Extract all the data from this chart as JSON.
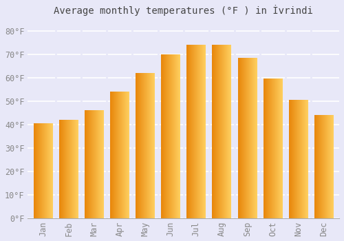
{
  "title": "Average monthly temperatures (°F ) in İvrindi",
  "months": [
    "Jan",
    "Feb",
    "Mar",
    "Apr",
    "May",
    "Jun",
    "Jul",
    "Aug",
    "Sep",
    "Oct",
    "Nov",
    "Dec"
  ],
  "values": [
    40.5,
    42.0,
    46.0,
    54.0,
    62.0,
    70.0,
    74.0,
    74.0,
    68.5,
    59.5,
    50.5,
    44.0
  ],
  "bar_color_left": "#E8860A",
  "bar_color_right": "#FFD060",
  "ylim": [
    0,
    85
  ],
  "yticks": [
    0,
    10,
    20,
    30,
    40,
    50,
    60,
    70,
    80
  ],
  "background_color": "#e8e8f8",
  "grid_color": "#ffffff",
  "title_fontsize": 10,
  "tick_fontsize": 8.5,
  "bar_width": 0.75
}
